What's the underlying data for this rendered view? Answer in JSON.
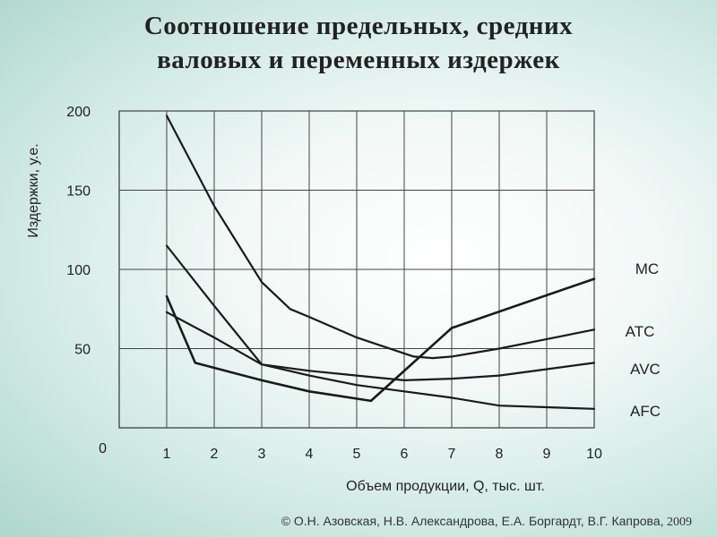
{
  "title": {
    "line1": "Соотношение предельных, средних",
    "line2": "валовых и переменных издержек"
  },
  "copyright": {
    "authors": "© О.Н. Азовская, Н.В. Александрова, Е.А. Боргардт, В.Г. Капрова,",
    "year": "2009"
  },
  "chart_data": {
    "type": "line",
    "xlabel": "Объем продукции, Q, тыс. шт.",
    "ylabel": "Издержки, у.е.",
    "xlim": [
      0,
      10
    ],
    "ylim": [
      0,
      200
    ],
    "x_ticks": [
      1,
      2,
      3,
      4,
      5,
      6,
      7,
      8,
      9,
      10
    ],
    "y_ticks": [
      50,
      100,
      150,
      200
    ],
    "origin_label": "0",
    "grid": true,
    "series": [
      {
        "name": "MC",
        "x": [
          1,
          1.6,
          3,
          4,
          5.3,
          7,
          10
        ],
        "y": [
          83,
          41,
          30,
          23,
          17,
          63,
          94
        ]
      },
      {
        "name": "ATC",
        "x": [
          1,
          2,
          3,
          3.6,
          4,
          5,
          6.2,
          6.6,
          7,
          8,
          9,
          10
        ],
        "y": [
          197,
          140,
          92,
          75,
          70,
          57,
          45,
          44,
          45,
          50,
          56,
          62
        ]
      },
      {
        "name": "AVC",
        "x": [
          1,
          2,
          3,
          4,
          5,
          6,
          7,
          8,
          9,
          10
        ],
        "y": [
          73,
          57,
          40,
          36,
          33,
          30,
          31,
          33,
          37,
          41
        ]
      },
      {
        "name": "AFC",
        "x": [
          1,
          2,
          3,
          4,
          5,
          6,
          7,
          8,
          9,
          10
        ],
        "y": [
          115,
          77,
          40,
          33,
          27,
          23,
          19,
          14,
          13,
          12
        ]
      }
    ]
  }
}
